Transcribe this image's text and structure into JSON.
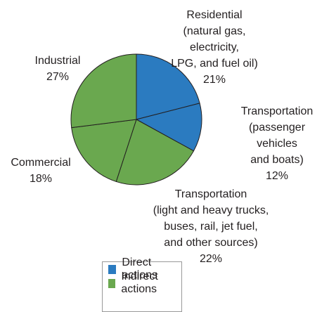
{
  "chart_data": {
    "type": "pie",
    "categories": [
      "Residential\n(natural gas, electricity,\nLPG, and fuel oil)",
      "Transportation\n(passenger vehicles\nand boats)",
      "Transportation\n(light and heavy trucks,\nbuses, rail, jet fuel,\nand other sources)",
      "Commercial",
      "Industrial"
    ],
    "values": [
      21,
      12,
      22,
      18,
      27
    ],
    "value_labels": [
      "21%",
      "12%",
      "22%",
      "18%",
      "27%"
    ],
    "colors": [
      "#2b7bc0",
      "#2b7bc0",
      "#6aa84f",
      "#6aa84f",
      "#6aa84f"
    ],
    "legend": [
      {
        "name": "Direct actions",
        "color": "#2b7bc0"
      },
      {
        "name": "Indirect actions",
        "color": "#6aa84f"
      }
    ]
  }
}
